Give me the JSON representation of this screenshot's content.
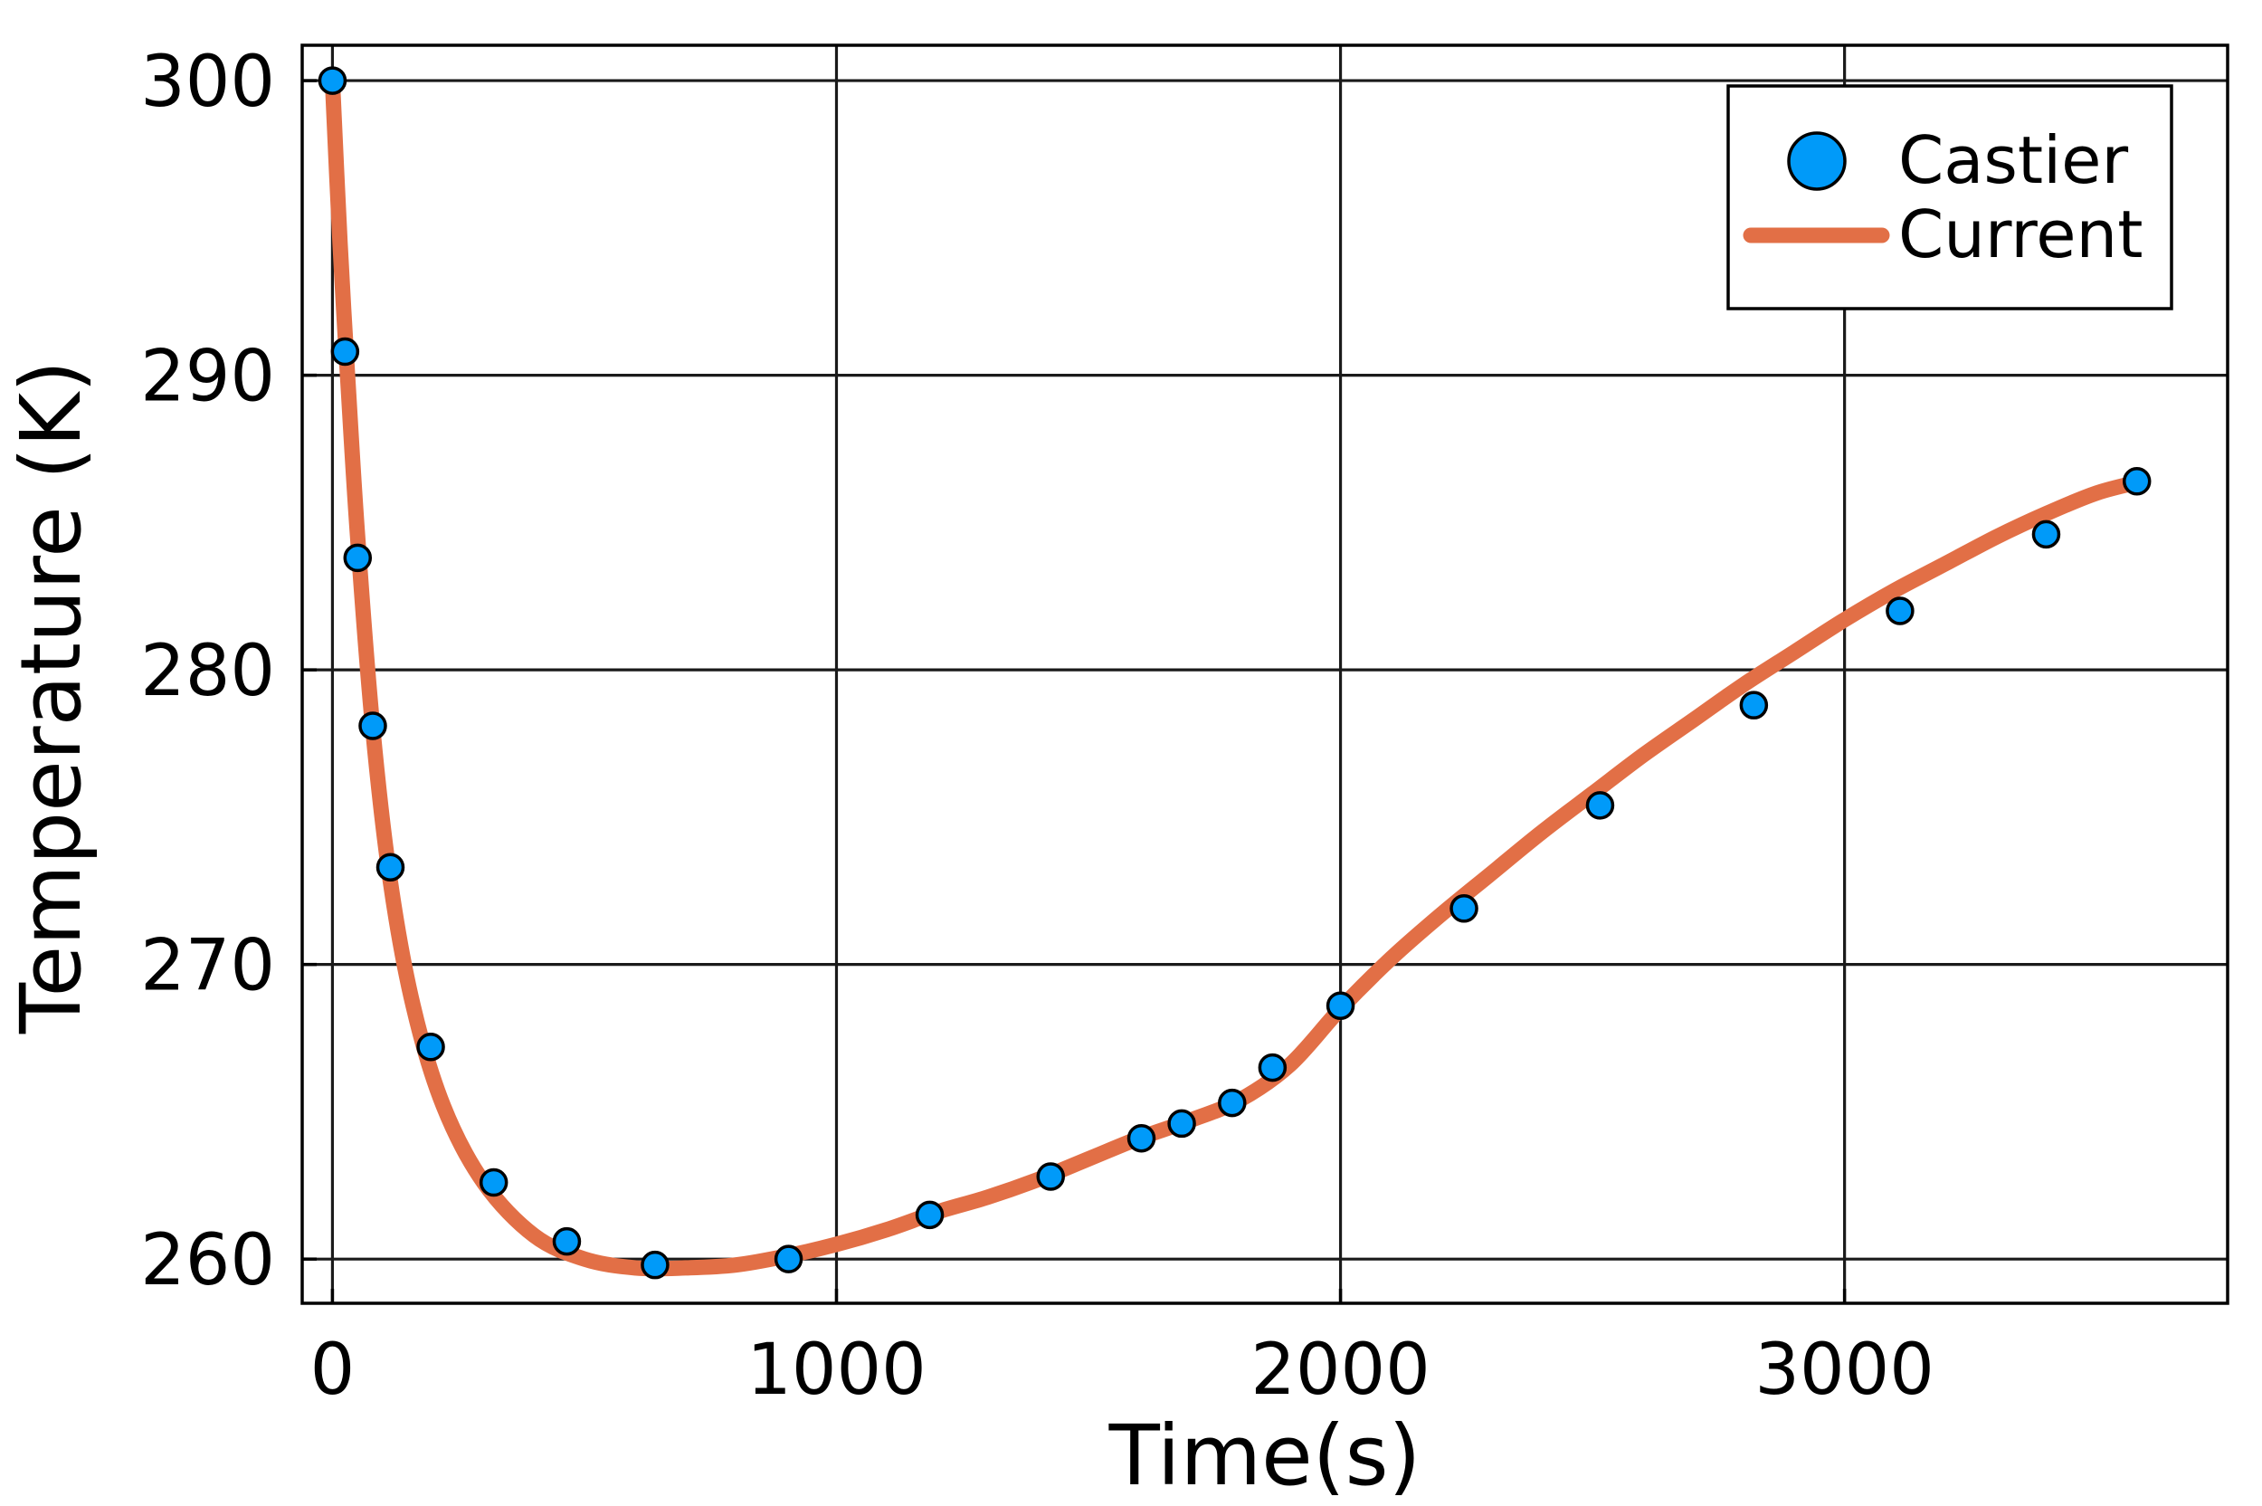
{
  "chart_data": {
    "type": "scatter",
    "xlabel": "Time(s)",
    "ylabel": "Temperature (K)",
    "xlim": [
      -60,
      3760
    ],
    "ylim": [
      258.5,
      301.2
    ],
    "xticks": [
      0,
      1000,
      2000,
      3000
    ],
    "yticks": [
      260,
      270,
      280,
      290,
      300
    ],
    "xtick_labels": [
      "0",
      "1000",
      "2000",
      "3000"
    ],
    "ytick_labels": [
      "260",
      "270",
      "280",
      "290",
      "300"
    ],
    "grid": true,
    "legend_position": "top-right",
    "series": [
      {
        "name": "Castier",
        "kind": "scatter",
        "color": "#009af9",
        "x": [
          0,
          25,
          50,
          80,
          115,
          195,
          320,
          465,
          640,
          905,
          1185,
          1425,
          1605,
          1685,
          1785,
          1865,
          2000,
          2245,
          2515,
          2820,
          3110,
          3400,
          3580
        ],
        "y": [
          300.0,
          290.8,
          283.8,
          278.1,
          273.3,
          267.2,
          262.6,
          260.6,
          259.8,
          260.0,
          261.5,
          262.8,
          264.1,
          264.6,
          265.3,
          266.5,
          268.6,
          271.9,
          275.4,
          278.8,
          282.0,
          284.6,
          286.4
        ]
      },
      {
        "name": "Current",
        "kind": "line",
        "color": "#e26f46",
        "x": [
          0,
          15,
          30,
          50,
          80,
          115,
          160,
          220,
          300,
          400,
          500,
          600,
          700,
          800,
          900,
          1000,
          1100,
          1200,
          1300,
          1400,
          1500,
          1600,
          1700,
          1800,
          1900,
          2000,
          2100,
          2200,
          2300,
          2400,
          2500,
          2600,
          2700,
          2800,
          2900,
          3000,
          3100,
          3200,
          3300,
          3400,
          3500,
          3590
        ],
        "y": [
          300.0,
          294.5,
          290.0,
          284.5,
          278.0,
          272.8,
          268.6,
          265.2,
          262.6,
          260.8,
          260.0,
          259.7,
          259.7,
          259.8,
          260.1,
          260.5,
          261.0,
          261.6,
          262.1,
          262.7,
          263.4,
          264.1,
          264.7,
          265.4,
          266.6,
          268.5,
          270.2,
          271.7,
          273.1,
          274.5,
          275.8,
          277.1,
          278.3,
          279.5,
          280.6,
          281.7,
          282.7,
          283.6,
          284.5,
          285.3,
          286.0,
          286.4
        ]
      }
    ]
  }
}
